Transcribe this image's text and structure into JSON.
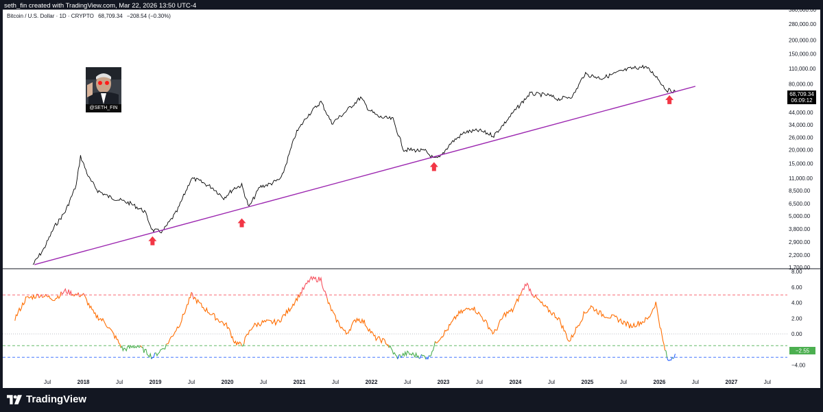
{
  "header": {
    "attribution": "seth_fin created with TradingView.com, Mar 22, 2026 13:50 UTC-4"
  },
  "legend": {
    "symbol": "Bitcoin / U.S. Dollar · 1D · CRYPTO",
    "price": "68,709.34",
    "change": "−208.54 (−0.30%)"
  },
  "avatar": {
    "caption": "@SETH_FIN"
  },
  "price_label": {
    "price": "68,709.34",
    "countdown": "06:09:12"
  },
  "oscillator_label": "−2.55",
  "footer": {
    "brand": "TradingView"
  },
  "colors": {
    "price_line": "#000000",
    "trendline": "#9c27b0",
    "arrow": "#f23645",
    "osc_orange": "#ff6d00",
    "osc_red": "#f7525f",
    "osc_green": "#4caf50",
    "osc_blue": "#2962ff",
    "upper_band": "#f7525f",
    "middle_band": "#4caf50",
    "lower_band": "#2962ff",
    "label_green": "#4caf50"
  },
  "chart_data": [
    {
      "type": "line",
      "title": "Bitcoin / U.S. Dollar · 1D · CRYPTO",
      "scale": "log",
      "ylim": [
        1700,
        380000
      ],
      "yticks": [
        "380,000.00",
        "280,000.00",
        "200,000.00",
        "150,000.00",
        "110,000.00",
        "80,000.00",
        "44,000.00",
        "34,000.00",
        "26,000.00",
        "20,000.00",
        "15,000.00",
        "11,000.00",
        "8,500.00",
        "6,500.00",
        "5,000.00",
        "3,800.00",
        "2,900.00",
        "2,200.00",
        "1,700.00"
      ],
      "ytick_values": [
        380000,
        280000,
        200000,
        150000,
        110000,
        80000,
        44000,
        34000,
        26000,
        20000,
        15000,
        11000,
        8500,
        6500,
        5000,
        3800,
        2900,
        2200,
        1700
      ],
      "series": [
        {
          "name": "BTCUSD",
          "x": [
            2017.3,
            2017.45,
            2017.6,
            2017.75,
            2017.9,
            2017.96,
            2018.08,
            2018.2,
            2018.35,
            2018.5,
            2018.65,
            2018.85,
            2018.96,
            2019.1,
            2019.3,
            2019.5,
            2019.6,
            2019.8,
            2019.95,
            2020.1,
            2020.2,
            2020.3,
            2020.45,
            2020.6,
            2020.75,
            2020.95,
            2021.1,
            2021.3,
            2021.45,
            2021.6,
            2021.85,
            2021.96,
            2022.1,
            2022.3,
            2022.45,
            2022.55,
            2022.75,
            2022.87,
            2022.95,
            2023.1,
            2023.3,
            2023.5,
            2023.7,
            2023.85,
            2023.96,
            2024.2,
            2024.45,
            2024.6,
            2024.8,
            2024.96,
            2025.2,
            2025.45,
            2025.6,
            2025.8,
            2025.95,
            2026.1,
            2026.22
          ],
          "values": [
            1800,
            2500,
            4000,
            5500,
            9500,
            17500,
            11000,
            8500,
            7500,
            7000,
            6500,
            5500,
            3700,
            3600,
            5500,
            11000,
            10500,
            9000,
            7300,
            9000,
            9500,
            6000,
            9200,
            9800,
            11000,
            28000,
            40000,
            55000,
            35000,
            42000,
            60000,
            47000,
            40000,
            38000,
            20000,
            20000,
            19500,
            16500,
            17000,
            23000,
            29000,
            30000,
            27000,
            35000,
            43000,
            65000,
            63000,
            58000,
            62000,
            98000,
            90000,
            103000,
            110000,
            115000,
            95000,
            70000,
            68709
          ]
        }
      ],
      "trendline": {
        "x": [
          2017.32,
          2026.5
        ],
        "values": [
          1800,
          76000
        ]
      },
      "markers": [
        {
          "x": 2018.96,
          "values": 2950,
          "shape": "arrow_up"
        },
        {
          "x": 2020.2,
          "values": 4300,
          "shape": "arrow_up"
        },
        {
          "x": 2022.87,
          "values": 14000,
          "shape": "arrow_up"
        },
        {
          "x": 2026.14,
          "values": 57000,
          "shape": "arrow_up"
        }
      ]
    },
    {
      "type": "line",
      "title": "Oscillator",
      "ylim": [
        -5,
        8
      ],
      "yticks": [
        "8.00",
        "6.00",
        "4.00",
        "2.00",
        "0.00",
        "−2.00",
        "−4.00"
      ],
      "ytick_values": [
        8,
        6,
        4,
        2,
        0,
        -2,
        -4
      ],
      "bands": {
        "upper": 5,
        "middle": -1.5,
        "lower": -3.0,
        "zero": 0
      },
      "series": [
        {
          "name": "Oscillator",
          "x": [
            2017.05,
            2017.2,
            2017.4,
            2017.6,
            2017.75,
            2017.9,
            2018.0,
            2018.15,
            2018.3,
            2018.45,
            2018.55,
            2018.75,
            2018.9,
            2018.96,
            2019.15,
            2019.35,
            2019.5,
            2019.65,
            2019.85,
            2020.0,
            2020.1,
            2020.2,
            2020.35,
            2020.5,
            2020.7,
            2020.85,
            2021.0,
            2021.15,
            2021.3,
            2021.4,
            2021.5,
            2021.65,
            2021.8,
            2021.9,
            2022.05,
            2022.2,
            2022.35,
            2022.5,
            2022.65,
            2022.8,
            2022.9,
            2023.05,
            2023.2,
            2023.4,
            2023.55,
            2023.7,
            2023.85,
            2023.96,
            2024.15,
            2024.25,
            2024.4,
            2024.6,
            2024.75,
            2024.95,
            2025.05,
            2025.2,
            2025.4,
            2025.6,
            2025.75,
            2025.85,
            2025.95,
            2026.05,
            2026.12,
            2026.22
          ],
          "values": [
            2.0,
            4.5,
            5.0,
            4.5,
            5.5,
            5.0,
            5.0,
            2.5,
            1.5,
            -0.5,
            -2.0,
            -1.5,
            -2.5,
            -3.0,
            -1.5,
            1.5,
            5.0,
            3.5,
            2.0,
            1.0,
            -1.0,
            -1.5,
            1.0,
            1.5,
            1.5,
            3.0,
            5.0,
            7.0,
            7.0,
            4.0,
            2.0,
            0.0,
            2.0,
            1.5,
            -0.5,
            -1.0,
            -3.0,
            -2.5,
            -2.8,
            -3.0,
            -1.0,
            0.5,
            2.5,
            3.5,
            2.0,
            0.0,
            2.5,
            3.0,
            6.5,
            5.0,
            3.5,
            2.0,
            -1.0,
            2.5,
            3.5,
            2.5,
            2.0,
            1.0,
            1.5,
            2.0,
            4.0,
            -1.0,
            -3.5,
            -2.55
          ]
        }
      ]
    }
  ],
  "x_axis": {
    "labels": [
      "Jul",
      "2018",
      "Jul",
      "2019",
      "Jul",
      "2020",
      "Jul",
      "2021",
      "Jul",
      "2022",
      "Jul",
      "2023",
      "Jul",
      "2024",
      "Jul",
      "2025",
      "Jul",
      "2026",
      "Jul",
      "2027",
      "Jul"
    ],
    "values": [
      2017.5,
      2018.0,
      2018.5,
      2019.0,
      2019.5,
      2020.0,
      2020.5,
      2021.0,
      2021.5,
      2022.0,
      2022.5,
      2023.0,
      2023.5,
      2024.0,
      2024.5,
      2025.0,
      2025.5,
      2026.0,
      2026.5,
      2027.0,
      2027.5
    ],
    "is_year": [
      false,
      true,
      false,
      true,
      false,
      true,
      false,
      true,
      false,
      true,
      false,
      true,
      false,
      true,
      false,
      true,
      false,
      true,
      false,
      true,
      false
    ]
  }
}
